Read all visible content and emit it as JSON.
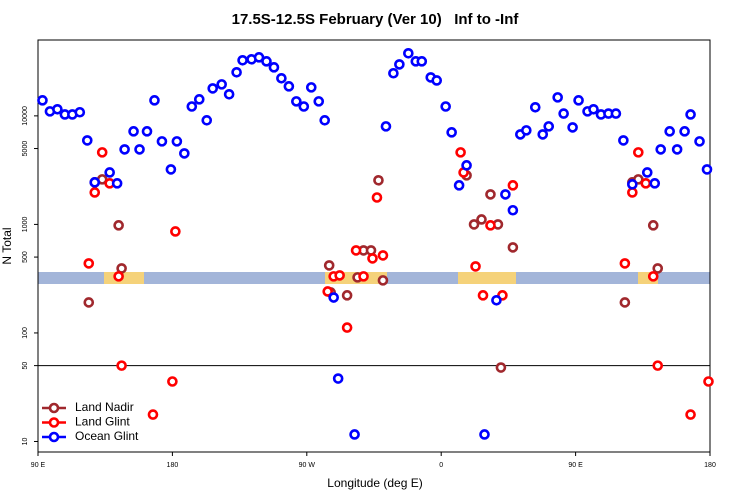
{
  "chart_data": {
    "type": "scatter",
    "title": "17.5S-12.5S February (Ver 10)   Inf to -Inf",
    "x_label": "Longitude (deg E)",
    "y_label": "N Total",
    "xlim": [
      90,
      540
    ],
    "xticks": [
      {
        "value": 90,
        "label": "90 E"
      },
      {
        "value": 180,
        "label": "180"
      },
      {
        "value": 270,
        "label": "90 W"
      },
      {
        "value": 360,
        "label": "0"
      },
      {
        "value": 450,
        "label": "90 E"
      },
      {
        "value": 540,
        "label": "180"
      }
    ],
    "ylim": [
      8,
      50000
    ],
    "y_log": true,
    "yticks": [
      10,
      50,
      100,
      500,
      1000,
      5000,
      10000
    ],
    "hline": 50,
    "legend": "bottom-left",
    "series": [
      {
        "name": "Land Nadir",
        "color": "#a0282d",
        "x": [
          124,
          128,
          133,
          144,
          146,
          285,
          286,
          297,
          304,
          308,
          313,
          318,
          321,
          377,
          382,
          387,
          393,
          398,
          408,
          400,
          483,
          488,
          492,
          502,
          505
        ],
        "values": [
          191,
          2440,
          2600,
          980,
          393,
          419,
          236,
          222,
          325,
          576,
          576,
          2550,
          305,
          2830,
          1000,
          1110,
          1890,
          1000,
          614,
          48,
          191,
          2440,
          2600,
          980,
          393
        ]
      },
      {
        "name": "Land Glint",
        "color": "#ff0000",
        "x": [
          124,
          128,
          133,
          138,
          144,
          146,
          167,
          180,
          182,
          284,
          288,
          292,
          297,
          303,
          308,
          314,
          317,
          321,
          373,
          375,
          383,
          388,
          393,
          401,
          408,
          483,
          488,
          492,
          497,
          502,
          505,
          527,
          539
        ],
        "values": [
          437,
          1970,
          4610,
          2390,
          332,
          50,
          17.7,
          35.7,
          861,
          241,
          332,
          339,
          112,
          576,
          332,
          486,
          1770,
          518,
          4610,
          3010,
          410,
          222,
          980,
          222,
          2290,
          437,
          1970,
          4610,
          2390,
          332,
          50,
          17.7,
          35.7
        ]
      },
      {
        "name": "Ocean Glint",
        "color": "#0000ff",
        "x": [
          93,
          98,
          103,
          108,
          113,
          118,
          123,
          128,
          138,
          143,
          148,
          154,
          158,
          163,
          168,
          173,
          179,
          183,
          188,
          193,
          198,
          203,
          207,
          213,
          218,
          223,
          227,
          233,
          238,
          243,
          248,
          253,
          258,
          263,
          268,
          273,
          278,
          282,
          288,
          291,
          302,
          323,
          328,
          332,
          338,
          343,
          347,
          353,
          357,
          363,
          367,
          372,
          377,
          389,
          397,
          403,
          408,
          413,
          417,
          423,
          428,
          432,
          438,
          442,
          448,
          452,
          458,
          462,
          467,
          472,
          477,
          482,
          488,
          498,
          503,
          507,
          513,
          518,
          523,
          527,
          533,
          538
        ],
        "values": [
          13900,
          11000,
          11500,
          10300,
          10300,
          10800,
          5940,
          2440,
          3010,
          2390,
          4910,
          7200,
          4910,
          7200,
          13900,
          5820,
          3210,
          5820,
          4510,
          12200,
          14200,
          9100,
          17900,
          19500,
          15800,
          25200,
          32500,
          33200,
          34600,
          31800,
          28000,
          22200,
          18700,
          13600,
          12200,
          18300,
          13600,
          9100,
          212,
          38,
          11.6,
          8000,
          24700,
          29800,
          37700,
          31800,
          31800,
          22600,
          21200,
          12200,
          7050,
          2290,
          3500,
          11.6,
          200,
          1890,
          1350,
          6750,
          7350,
          12000,
          6750,
          8000,
          14800,
          10500,
          7830,
          13900,
          11000,
          11500,
          10300,
          10500,
          10500,
          5940,
          2340,
          3010,
          2390,
          4910,
          7200,
          4910,
          7200,
          10300,
          5820,
          3210
        ]
      }
    ]
  }
}
